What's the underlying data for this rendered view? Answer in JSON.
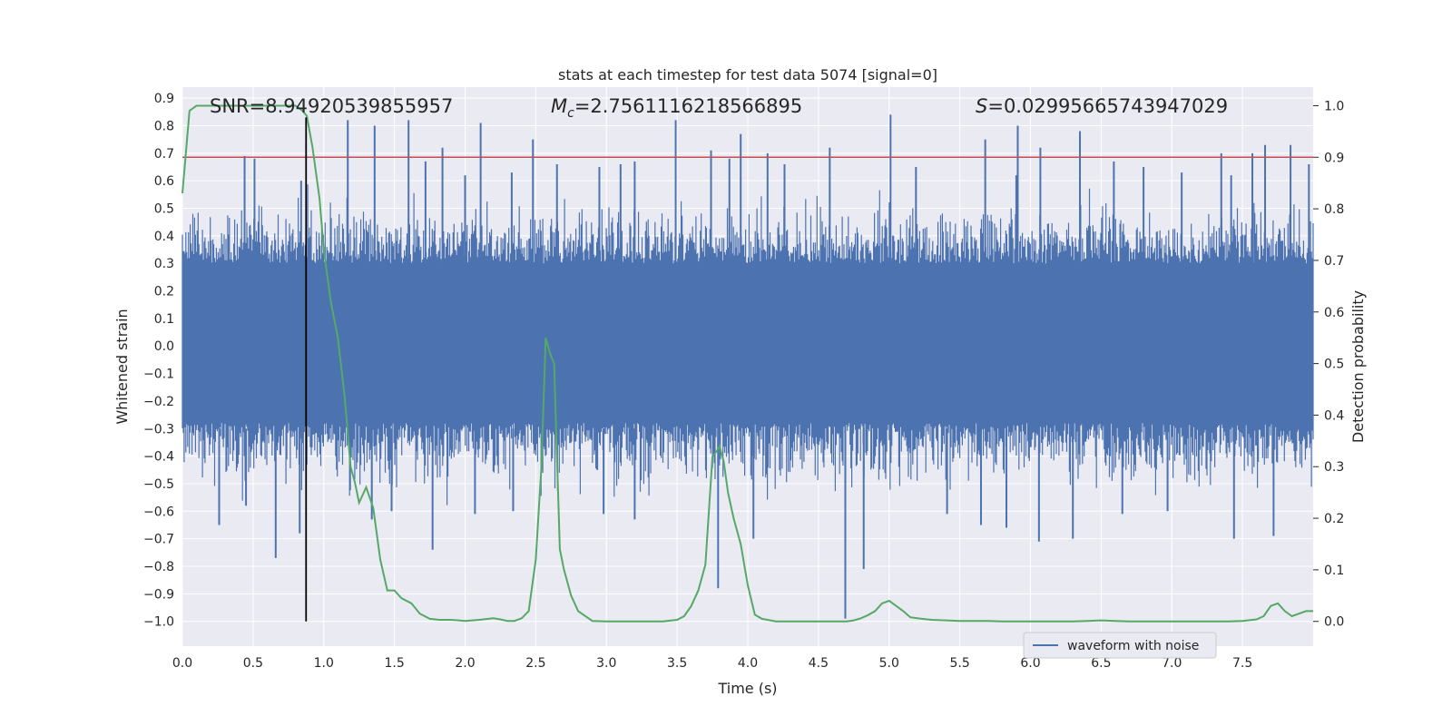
{
  "chart_data": {
    "type": "line",
    "title": "stats at each timestep for test data 5074 [signal=0]",
    "xlabel": "Time (s)",
    "ylabel": "Whitened strain",
    "y2label": "Detection probability",
    "xlim": [
      0.0,
      8.0
    ],
    "ylim": [
      -1.09,
      0.94
    ],
    "y2lim": [
      -0.048,
      1.036
    ],
    "xticks": [
      "0.0",
      "0.5",
      "1.0",
      "1.5",
      "2.0",
      "2.5",
      "3.0",
      "3.5",
      "4.0",
      "4.5",
      "5.0",
      "5.5",
      "6.0",
      "6.5",
      "7.0",
      "7.5"
    ],
    "yticks": [
      "0.9",
      "0.8",
      "0.7",
      "0.6",
      "0.5",
      "0.4",
      "0.3",
      "0.2",
      "0.1",
      "0.0",
      "−0.1",
      "−0.2",
      "−0.3",
      "−0.4",
      "−0.5",
      "−0.6",
      "−0.7",
      "−0.8",
      "−0.9",
      "−1.0"
    ],
    "y2ticks": [
      "1.0",
      "0.9",
      "0.8",
      "0.7",
      "0.6",
      "0.5",
      "0.4",
      "0.3",
      "0.2",
      "0.1",
      "0.0"
    ],
    "grid": true,
    "legend": {
      "position": "lower-right",
      "entries": [
        "waveform with noise"
      ]
    },
    "annotations": {
      "snr": "SNR=8.94920539855957",
      "mc_symbol": "M",
      "mc_sub": "c",
      "mc_value": "=2.7561116218566895",
      "s_symbol": "S",
      "s_value": "=0.02995665743947029"
    },
    "series": [
      {
        "name": "waveform with noise",
        "axis": "left",
        "color": "#4c72b0",
        "band": {
          "x_range": [
            0.0,
            8.0
          ],
          "y_range": [
            -0.5,
            0.5
          ]
        },
        "peaks": [
          [
            0.44,
            0.69
          ],
          [
            0.51,
            0.68
          ],
          [
            0.84,
            0.6
          ],
          [
            1.17,
            0.82
          ],
          [
            1.36,
            0.8
          ],
          [
            1.6,
            0.82
          ],
          [
            1.72,
            0.67
          ],
          [
            1.84,
            0.72
          ],
          [
            2.0,
            0.62
          ],
          [
            2.11,
            0.81
          ],
          [
            2.33,
            0.63
          ],
          [
            2.48,
            0.75
          ],
          [
            2.65,
            0.66
          ],
          [
            2.95,
            0.65
          ],
          [
            3.1,
            0.66
          ],
          [
            3.2,
            0.67
          ],
          [
            3.49,
            0.82
          ],
          [
            3.74,
            0.71
          ],
          [
            3.87,
            0.68
          ],
          [
            3.95,
            0.77
          ],
          [
            4.14,
            0.7
          ],
          [
            4.26,
            0.66
          ],
          [
            4.58,
            0.72
          ],
          [
            5.01,
            0.84
          ],
          [
            5.19,
            0.65
          ],
          [
            5.68,
            0.75
          ],
          [
            5.9,
            0.62
          ],
          [
            5.91,
            0.8
          ],
          [
            6.07,
            0.72
          ],
          [
            6.35,
            0.78
          ],
          [
            6.59,
            0.67
          ],
          [
            6.8,
            0.65
          ],
          [
            7.07,
            0.63
          ],
          [
            7.35,
            0.7
          ],
          [
            7.42,
            0.62
          ],
          [
            7.57,
            0.7
          ],
          [
            7.66,
            0.73
          ],
          [
            7.84,
            0.73
          ],
          [
            7.97,
            0.66
          ]
        ],
        "troughs": [
          [
            0.26,
            -0.65
          ],
          [
            0.45,
            -0.58
          ],
          [
            0.66,
            -0.77
          ],
          [
            0.83,
            -0.68
          ],
          [
            1.34,
            -0.63
          ],
          [
            1.48,
            -0.6
          ],
          [
            1.77,
            -0.74
          ],
          [
            2.07,
            -0.61
          ],
          [
            2.34,
            -0.6
          ],
          [
            2.98,
            -0.61
          ],
          [
            3.2,
            -0.63
          ],
          [
            3.79,
            -0.88
          ],
          [
            4.04,
            -0.7
          ],
          [
            4.69,
            -0.99
          ],
          [
            4.82,
            -0.81
          ],
          [
            5.41,
            -0.61
          ],
          [
            5.65,
            -0.65
          ],
          [
            5.83,
            -0.66
          ],
          [
            6.06,
            -0.71
          ],
          [
            6.3,
            -0.7
          ],
          [
            6.65,
            -0.61
          ],
          [
            6.97,
            -0.6
          ],
          [
            7.44,
            -0.7
          ],
          [
            7.72,
            -0.69
          ]
        ]
      },
      {
        "name": "detection-probability",
        "axis": "right",
        "color": "#55a868",
        "x": [
          0.0,
          0.05,
          0.1,
          0.15,
          0.2,
          0.3,
          0.4,
          0.5,
          0.6,
          0.7,
          0.8,
          0.85,
          0.88,
          0.92,
          0.97,
          1.0,
          1.05,
          1.1,
          1.15,
          1.19,
          1.22,
          1.25,
          1.3,
          1.35,
          1.4,
          1.45,
          1.5,
          1.55,
          1.62,
          1.68,
          1.75,
          1.82,
          1.9,
          2.0,
          2.1,
          2.2,
          2.25,
          2.3,
          2.35,
          2.4,
          2.45,
          2.5,
          2.54,
          2.57,
          2.6,
          2.63,
          2.67,
          2.7,
          2.75,
          2.8,
          2.9,
          3.0,
          3.1,
          3.2,
          3.3,
          3.4,
          3.5,
          3.55,
          3.6,
          3.65,
          3.7,
          3.75,
          3.78,
          3.8,
          3.83,
          3.86,
          3.9,
          3.95,
          4.0,
          4.05,
          4.1,
          4.2,
          4.3,
          4.4,
          4.5,
          4.6,
          4.65,
          4.7,
          4.75,
          4.8,
          4.85,
          4.9,
          4.95,
          5.0,
          5.05,
          5.1,
          5.15,
          5.2,
          5.3,
          5.4,
          5.5,
          5.6,
          5.7,
          5.8,
          5.9,
          6.0,
          6.1,
          6.2,
          6.3,
          6.4,
          6.5,
          6.6,
          6.7,
          6.8,
          6.9,
          7.0,
          7.1,
          7.2,
          7.3,
          7.4,
          7.5,
          7.6,
          7.65,
          7.7,
          7.75,
          7.8,
          7.85,
          7.9,
          7.95,
          8.0
        ],
        "values": [
          0.83,
          0.99,
          1.0,
          1.0,
          1.0,
          1.0,
          1.0,
          1.0,
          1.0,
          1.0,
          1.0,
          0.99,
          0.98,
          0.92,
          0.82,
          0.72,
          0.62,
          0.55,
          0.43,
          0.3,
          0.27,
          0.23,
          0.26,
          0.22,
          0.12,
          0.06,
          0.06,
          0.045,
          0.035,
          0.015,
          0.005,
          0.003,
          0.003,
          0.001,
          0.003,
          0.006,
          0.004,
          0.001,
          0.001,
          0.006,
          0.02,
          0.12,
          0.3,
          0.55,
          0.52,
          0.5,
          0.14,
          0.1,
          0.05,
          0.02,
          0.001,
          0.0,
          0.0,
          0.0,
          0.0,
          0.0,
          0.003,
          0.01,
          0.03,
          0.06,
          0.11,
          0.32,
          0.33,
          0.34,
          0.31,
          0.25,
          0.2,
          0.15,
          0.07,
          0.013,
          0.005,
          0.0,
          0.0,
          0.0,
          0.0,
          0.0,
          0.0,
          0.0,
          0.002,
          0.006,
          0.012,
          0.02,
          0.035,
          0.04,
          0.03,
          0.02,
          0.008,
          0.006,
          0.003,
          0.002,
          0.001,
          0.001,
          0.001,
          0.0,
          0.0,
          0.0,
          0.0,
          0.0,
          0.0,
          0.001,
          0.002,
          0.001,
          0.0,
          0.0,
          0.0,
          0.0,
          0.0,
          0.0,
          0.0,
          0.0,
          0.001,
          0.004,
          0.01,
          0.03,
          0.035,
          0.02,
          0.01,
          0.015,
          0.02,
          0.02
        ]
      },
      {
        "name": "threshold",
        "axis": "right",
        "color": "#c44e52",
        "x": [
          0.0,
          8.0
        ],
        "values": [
          0.9,
          0.9
        ]
      },
      {
        "name": "marker",
        "axis": "left",
        "color": "#000000",
        "x": [
          0.875,
          0.875
        ],
        "values": [
          -1.0,
          0.83
        ]
      }
    ]
  }
}
